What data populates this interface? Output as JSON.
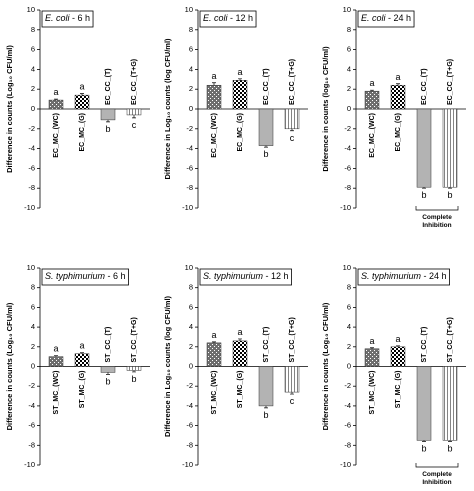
{
  "chart_data": [
    {
      "type": "bar",
      "title_italic": "E. coli",
      "title_rest": " - 6 h",
      "ylabel": "Difference in counts (Log₁₀ CFU/ml)",
      "categories": [
        "EC_MC_(WC)",
        "EC_MC_(G)",
        "EC_CC_(T)",
        "EC_CC_(T+G)"
      ],
      "values": [
        0.9,
        1.4,
        -1.1,
        -0.6
      ],
      "errors": [
        0.1,
        0.15,
        0.2,
        0.3
      ],
      "letters": [
        "a",
        "a",
        "b",
        "c"
      ],
      "colors": [
        "#6e6e6e",
        "#000000",
        "#b3b3b3",
        "#666666"
      ],
      "patterns": [
        "dots",
        "checker",
        "solid",
        "stripes"
      ],
      "ylim": [
        -10,
        10
      ],
      "yticks": [
        -10,
        -8,
        -6,
        -4,
        -2,
        0,
        2,
        4,
        6,
        8,
        10
      ]
    },
    {
      "type": "bar",
      "title_italic": "E. coli",
      "title_rest": " - 12 h",
      "ylabel": "Difference in Log₁₀ counts (log CFU/ml)",
      "categories": [
        "EC_MC_(WC)",
        "EC_MC_(G)",
        "EC_CC_(T)",
        "EC_CC_(T+G)"
      ],
      "values": [
        2.4,
        2.9,
        -3.7,
        -2.0
      ],
      "errors": [
        0.25,
        0.15,
        0.15,
        0.2
      ],
      "letters": [
        "a",
        "a",
        "b",
        "c"
      ],
      "colors": [
        "#6e6e6e",
        "#000000",
        "#b3b3b3",
        "#666666"
      ],
      "patterns": [
        "dots",
        "checker",
        "solid",
        "stripes"
      ],
      "ylim": [
        -10,
        10
      ],
      "yticks": [
        -10,
        -8,
        -6,
        -4,
        -2,
        0,
        2,
        4,
        6,
        8,
        10
      ]
    },
    {
      "type": "bar",
      "title_italic": "E. coli",
      "title_rest": " - 24 h",
      "ylabel": "Difference in counts (log₁₀ CFU/ml)",
      "categories": [
        "EC_MC_(WC)",
        "EC_MC_(G)",
        "EC_CC_(T)",
        "EC_CC_(T+G)"
      ],
      "values": [
        1.8,
        2.4,
        -7.9,
        -7.9
      ],
      "errors": [
        0.1,
        0.15,
        0.1,
        0.1
      ],
      "letters": [
        "a",
        "a",
        "b",
        "b"
      ],
      "colors": [
        "#6e6e6e",
        "#000000",
        "#b3b3b3",
        "#666666"
      ],
      "patterns": [
        "dots",
        "checker",
        "solid",
        "stripes"
      ],
      "annotation": [
        "Complete",
        "Inhibition"
      ],
      "ylim": [
        -10,
        10
      ],
      "yticks": [
        -10,
        -8,
        -6,
        -4,
        -2,
        0,
        2,
        4,
        6,
        8,
        10
      ]
    },
    {
      "type": "bar",
      "title_italic": "S. typhimurium",
      "title_rest": " - 6 h",
      "ylabel": "Difference in counts (Log₁₀ CFU/ml)",
      "categories": [
        "ST_MC_(WC)",
        "ST_MC_(G)",
        "ST_CC_(T)",
        "ST_CC_(T+G)"
      ],
      "values": [
        1.0,
        1.3,
        -0.6,
        -0.4
      ],
      "errors": [
        0.1,
        0.1,
        0.2,
        0.15
      ],
      "letters": [
        "a",
        "a",
        "b",
        "b"
      ],
      "colors": [
        "#6e6e6e",
        "#000000",
        "#b3b3b3",
        "#666666"
      ],
      "patterns": [
        "dots",
        "checker",
        "solid",
        "stripes"
      ],
      "ylim": [
        -10,
        10
      ],
      "yticks": [
        -10,
        -8,
        -6,
        -4,
        -2,
        0,
        2,
        4,
        6,
        8,
        10
      ]
    },
    {
      "type": "bar",
      "title_italic": "S. typhimurium",
      "title_rest": " - 12 h",
      "ylabel": "Difference in Log₁₀ counts (log CFU/ml)",
      "categories": [
        "ST_MC_(WC)",
        "ST_MC_(G)",
        "ST_CC_(T)",
        "ST_CC_(T+G)"
      ],
      "values": [
        2.4,
        2.6,
        -4.0,
        -2.6
      ],
      "errors": [
        0.1,
        0.2,
        0.2,
        0.2
      ],
      "letters": [
        "a",
        "a",
        "b",
        "c"
      ],
      "colors": [
        "#6e6e6e",
        "#000000",
        "#b3b3b3",
        "#666666"
      ],
      "patterns": [
        "dots",
        "checker",
        "solid",
        "stripes"
      ],
      "ylim": [
        -10,
        10
      ],
      "yticks": [
        -10,
        -8,
        -6,
        -4,
        -2,
        0,
        2,
        4,
        6,
        8,
        10
      ]
    },
    {
      "type": "bar",
      "title_italic": "S. typhimurium",
      "title_rest": " - 24 h",
      "ylabel": "Difference in counts (Log₁₀ CFU/ml)",
      "categories": [
        "ST_MC_(WC)",
        "ST_MC_(G)",
        "ST_CC_(T)",
        "ST_CC_(T+G)"
      ],
      "values": [
        1.8,
        2.0,
        -7.5,
        -7.5
      ],
      "errors": [
        0.1,
        0.1,
        0.1,
        0.1
      ],
      "letters": [
        "a",
        "a",
        "b",
        "b"
      ],
      "colors": [
        "#6e6e6e",
        "#000000",
        "#b3b3b3",
        "#666666"
      ],
      "patterns": [
        "dots",
        "checker",
        "solid",
        "stripes"
      ],
      "annotation": [
        "Complete",
        "Inhibition"
      ],
      "ylim": [
        -10,
        10
      ],
      "yticks": [
        -10,
        -8,
        -6,
        -4,
        -2,
        0,
        2,
        4,
        6,
        8,
        10
      ]
    }
  ]
}
